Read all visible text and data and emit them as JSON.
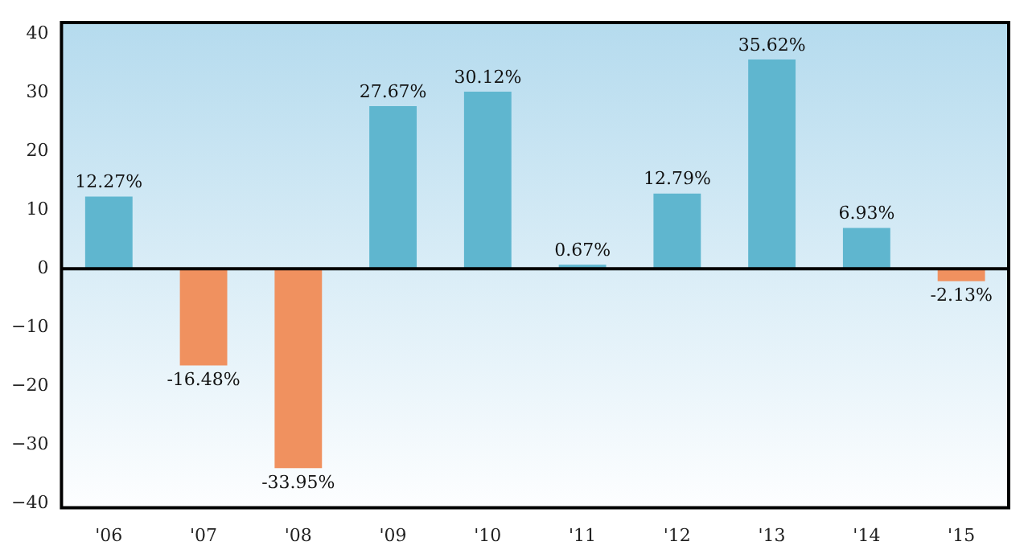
{
  "chart_data": {
    "type": "bar",
    "categories": [
      "'06",
      "'07",
      "'08",
      "'09",
      "'10",
      "'11",
      "'12",
      "'13",
      "'14",
      "'15"
    ],
    "values": [
      12.27,
      -16.48,
      -33.95,
      27.67,
      30.12,
      0.67,
      12.79,
      35.62,
      6.93,
      -2.13
    ],
    "colors": [
      "#5fb6cf",
      "#f0915f",
      "#f0915f",
      "#5fb6cf",
      "#5fb6cf",
      "#5fb6cf",
      "#5fb6cf",
      "#5fb6cf",
      "#5fb6cf",
      "#f0915f"
    ],
    "value_labels": [
      "12.27%",
      "-16.48%",
      "-33.95%",
      "27.67%",
      "30.12%",
      "0.67%",
      "12.79%",
      "35.62%",
      "6.93%",
      "-2.13%"
    ],
    "ylim": [
      -40.7,
      41.9
    ],
    "yticks": [
      {
        "value": -40,
        "label": "−40"
      },
      {
        "value": -30,
        "label": "−30"
      },
      {
        "value": -20,
        "label": "−20"
      },
      {
        "value": -10,
        "label": "−10"
      },
      0,
      10,
      20,
      30,
      40
    ],
    "ref_lines": [
      {
        "axis": "y",
        "value": 0,
        "color": "#000000"
      }
    ],
    "grid": false,
    "legend": false
  }
}
